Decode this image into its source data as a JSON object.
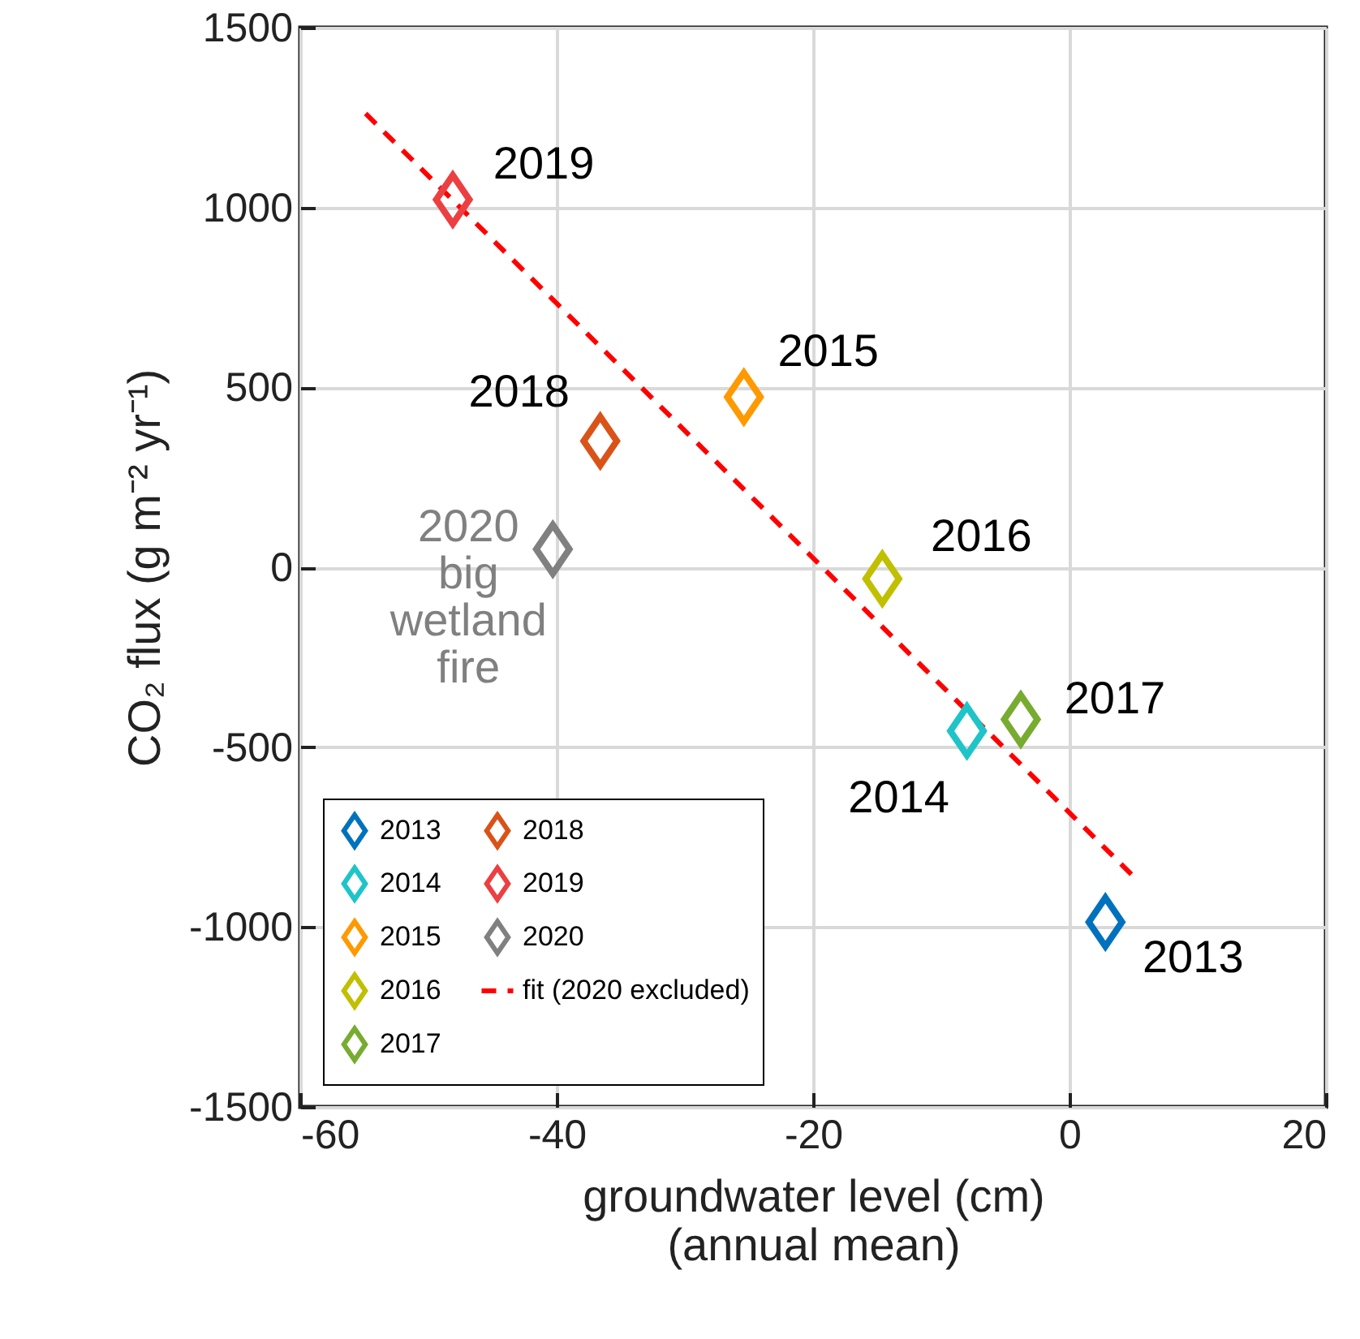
{
  "chart_data": {
    "type": "scatter",
    "xlabel": "groundwater level (cm)\n(annual mean)",
    "ylabel": "CO₂ flux (g m⁻² yr⁻¹)",
    "xlim": [
      -60,
      20
    ],
    "ylim": [
      -1500,
      1500
    ],
    "xticks": [
      -60,
      -40,
      -20,
      0,
      20
    ],
    "yticks": [
      -1500,
      -1000,
      -500,
      0,
      500,
      1000,
      1500
    ],
    "grid": true,
    "legend": "bottom left",
    "marker": "diamond",
    "series": [
      {
        "name": "2013",
        "color": "#0072bd",
        "x": [
          2.8
        ],
        "values": [
          -986
        ]
      },
      {
        "name": "2014",
        "color": "#1ec4c8",
        "x": [
          -8.0
        ],
        "values": [
          -455
        ]
      },
      {
        "name": "2015",
        "color": "#ff9900",
        "x": [
          -25.4
        ],
        "values": [
          473
        ]
      },
      {
        "name": "2016",
        "color": "#c0c000",
        "x": [
          -14.6
        ],
        "values": [
          -32
        ]
      },
      {
        "name": "2017",
        "color": "#77ac30",
        "x": [
          -3.8
        ],
        "values": [
          -423
        ]
      },
      {
        "name": "2018",
        "color": "#d95319",
        "x": [
          -36.6
        ],
        "values": [
          351
        ]
      },
      {
        "name": "2019",
        "color": "#ec3f42",
        "x": [
          -48.1
        ],
        "values": [
          1022
        ]
      },
      {
        "name": "2020",
        "color": "#808080",
        "x": [
          -40.3
        ],
        "values": [
          50
        ]
      },
      {
        "name": "fit (2020 excluded)",
        "type": "line",
        "color": "#ff0000",
        "line_style": "dashed",
        "marker": "none",
        "x": [
          -54.9,
          4.9
        ],
        "values": [
          1261,
          -856
        ]
      }
    ],
    "annotations": [
      {
        "text": "2013",
        "x": 2.8,
        "y": -986
      },
      {
        "text": "2014",
        "x": -8.0,
        "y": -455
      },
      {
        "text": "2015",
        "x": -25.4,
        "y": 473
      },
      {
        "text": "2016",
        "x": -14.6,
        "y": -32
      },
      {
        "text": "2017",
        "x": -3.8,
        "y": -423
      },
      {
        "text": "2018",
        "x": -36.6,
        "y": 351
      },
      {
        "text": "2019",
        "x": -48.1,
        "y": 1022
      },
      {
        "text": "2020\nbig\nwetland\nfire",
        "x": -40.3,
        "y": 50
      }
    ]
  }
}
